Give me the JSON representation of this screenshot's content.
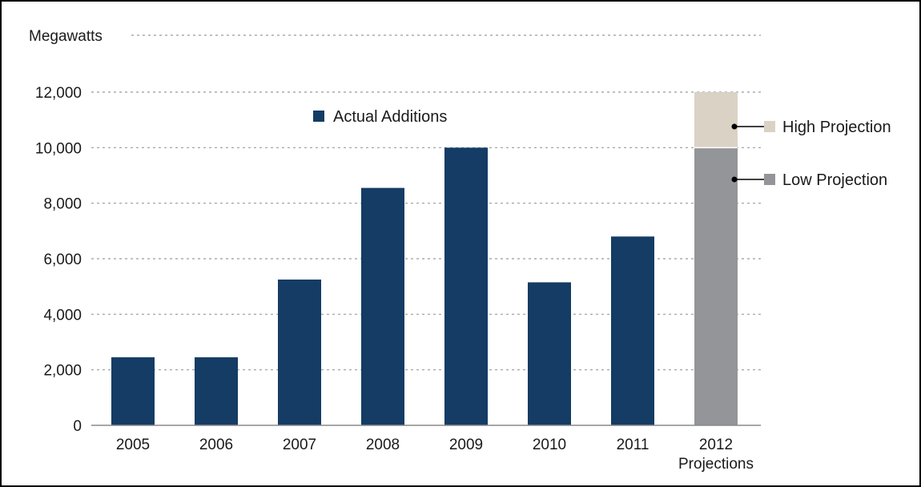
{
  "chart_data": {
    "type": "bar",
    "ylabel": "Megawatts",
    "categories": [
      "2005",
      "2006",
      "2007",
      "2008",
      "2009",
      "2010",
      "2011",
      "2012"
    ],
    "category_sublabels": [
      "",
      "",
      "",
      "",
      "",
      "",
      "",
      "Projections"
    ],
    "ylim": [
      0,
      12000
    ],
    "ytick_values": [
      0,
      2000,
      4000,
      6000,
      8000,
      10000,
      12000
    ],
    "ytick_labels": [
      "0",
      "2,000",
      "4,000",
      "6,000",
      "8,000",
      "10,000",
      "12,000"
    ],
    "grid": true,
    "series": [
      {
        "name": "Actual Additions",
        "color": "#143c64",
        "values": [
          2450,
          2450,
          5250,
          8550,
          10000,
          5150,
          6800,
          null
        ]
      },
      {
        "name": "Low Projection",
        "color": "#939598",
        "values": [
          null,
          null,
          null,
          null,
          null,
          null,
          null,
          10000
        ]
      },
      {
        "name": "High Projection",
        "color": "#d9d2c5",
        "values": [
          null,
          null,
          null,
          null,
          null,
          null,
          null,
          2000
        ]
      }
    ],
    "stacked_series": [
      "Low Projection",
      "High Projection"
    ],
    "legend_placement": "top-center"
  }
}
